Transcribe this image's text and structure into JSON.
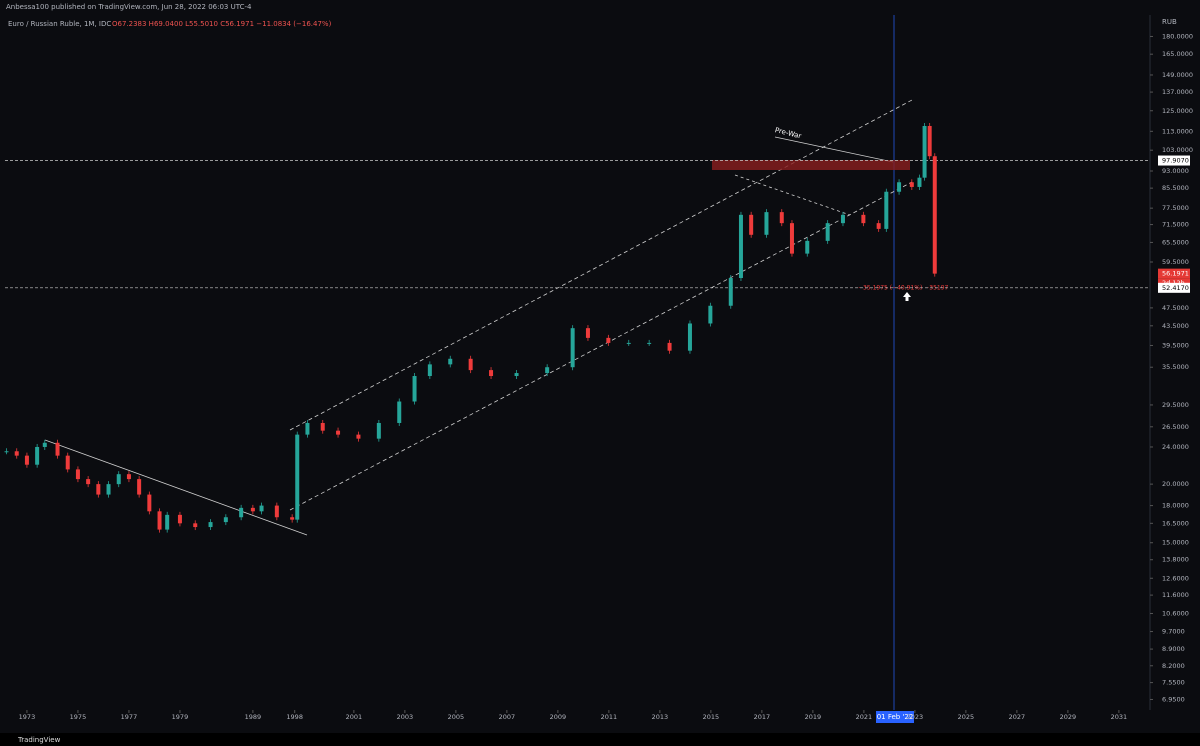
{
  "chart_data": {
    "type": "candlestick",
    "header": "Anbessa100 published on TradingView.com, Jun 28, 2022 06:03 UTC-4",
    "symbol": "Euro / Russian Ruble, 1M, IDC",
    "ohlc": "O67.2383 H69.0400 L55.5010 C56.1971 −11.0834 (−16.47%)",
    "currency": "RUB",
    "annotation": "Pre-War",
    "measure": "−35.1975 (−40.91%) −35197",
    "countdown": "2d 12h",
    "current_date": "01 Feb '22",
    "brand": "TradingView",
    "log_scale": true,
    "up_color": "#26a69a",
    "down_color": "#ef3b3b",
    "x": [
      -0.4,
      -0.2,
      0,
      0.2,
      0.35,
      0.6,
      0.8,
      1.0,
      1.2,
      1.4,
      1.6,
      1.8,
      2.0,
      2.2,
      2.4,
      2.6,
      2.75,
      3.0,
      3.3,
      3.6,
      3.9,
      4.2,
      4.43,
      4.6,
      4.9,
      5.2,
      5.3,
      5.5,
      5.8,
      6.1,
      6.5,
      6.9,
      7.3,
      7.6,
      7.9,
      8.3,
      8.7,
      9.1,
      9.6,
      10.2,
      10.7,
      11.0,
      11.4,
      11.8,
      12.2,
      12.6,
      13.0,
      13.4,
      13.8,
      14.0,
      14.2,
      14.5,
      14.8,
      15.0,
      15.3,
      15.7,
      16.0,
      16.4,
      16.7,
      16.85,
      17.1,
      17.35,
      17.5,
      17.6,
      17.7,
      17.8
    ],
    "values": [
      23.5,
      23,
      22,
      24,
      24.5,
      23,
      21.5,
      20.5,
      20,
      19,
      20,
      21,
      20.5,
      19,
      17.5,
      16,
      17.2,
      16.5,
      16.2,
      16.6,
      17,
      17.8,
      17.5,
      18,
      17,
      16.8,
      25.5,
      27,
      26,
      25.5,
      25,
      27,
      30,
      34,
      36,
      37,
      35,
      34,
      34.5,
      35.5,
      43,
      41,
      40,
      40,
      40,
      38.5,
      44,
      48,
      55,
      75,
      68,
      76,
      72,
      62,
      66,
      72,
      75,
      72,
      70,
      84,
      88,
      86,
      90,
      116,
      100,
      56.2
    ],
    "xlim": [
      -0.43,
      22.02
    ],
    "xticks": [
      {
        "value": 0,
        "label": "1973"
      },
      {
        "value": 1,
        "label": "1975"
      },
      {
        "value": 2,
        "label": "1977"
      },
      {
        "value": 3,
        "label": "1979"
      },
      {
        "value": 4.43,
        "label": "1989"
      },
      {
        "value": 5.25,
        "label": "1998"
      },
      {
        "value": 6.41,
        "label": "2001"
      },
      {
        "value": 7.41,
        "label": "2003"
      },
      {
        "value": 8.41,
        "label": "2005"
      },
      {
        "value": 9.41,
        "label": "2007"
      },
      {
        "value": 10.41,
        "label": "2009"
      },
      {
        "value": 11.41,
        "label": "2011"
      },
      {
        "value": 12.41,
        "label": "2013"
      },
      {
        "value": 13.41,
        "label": "2015"
      },
      {
        "value": 14.41,
        "label": "2017"
      },
      {
        "value": 15.41,
        "label": "2019"
      },
      {
        "value": 16.41,
        "label": "2021"
      },
      {
        "value": 17.41,
        "label": "2023"
      },
      {
        "value": 18.41,
        "label": "2025"
      },
      {
        "value": 19.41,
        "label": "2027"
      },
      {
        "value": 20.41,
        "label": "2029"
      },
      {
        "value": 21.41,
        "label": "2031"
      }
    ],
    "ylim": [
      6.6,
      200
    ],
    "yticks": [
      {
        "value": 180,
        "label": "180.0000"
      },
      {
        "value": 165,
        "label": "165.0000"
      },
      {
        "value": 149,
        "label": "149.0000"
      },
      {
        "value": 137,
        "label": "137.0000"
      },
      {
        "value": 125,
        "label": "125.0000"
      },
      {
        "value": 113,
        "label": "113.0000"
      },
      {
        "value": 103,
        "label": "103.0000"
      },
      {
        "value": 93,
        "label": "93.0000"
      },
      {
        "value": 85.5,
        "label": "85.5000"
      },
      {
        "value": 77.5,
        "label": "77.5000"
      },
      {
        "value": 71.5,
        "label": "71.5000"
      },
      {
        "value": 65.5,
        "label": "65.5000"
      },
      {
        "value": 59.5,
        "label": "59.5000"
      },
      {
        "value": 47.5,
        "label": "47.5000"
      },
      {
        "value": 43.5,
        "label": "43.5000"
      },
      {
        "value": 39.5,
        "label": "39.5000"
      },
      {
        "value": 35.5,
        "label": "35.5000"
      },
      {
        "value": 29.5,
        "label": "29.5000"
      },
      {
        "value": 26.5,
        "label": "26.5000"
      },
      {
        "value": 24,
        "label": "24.0000"
      },
      {
        "value": 20,
        "label": "20.0000"
      },
      {
        "value": 18,
        "label": "18.0000"
      },
      {
        "value": 16.5,
        "label": "16.5000"
      },
      {
        "value": 15,
        "label": "15.0000"
      },
      {
        "value": 13.8,
        "label": "13.8000"
      },
      {
        "value": 12.6,
        "label": "12.6000"
      },
      {
        "value": 11.6,
        "label": "11.6000"
      },
      {
        "value": 10.6,
        "label": "10.6000"
      },
      {
        "value": 9.7,
        "label": "9.7000"
      },
      {
        "value": 8.9,
        "label": "8.9000"
      },
      {
        "value": 8.2,
        "label": "8.2000"
      },
      {
        "value": 7.55,
        "label": "7.5500"
      },
      {
        "value": 6.95,
        "label": "6.9500"
      }
    ],
    "price_lines": [
      {
        "value": 97.907,
        "label": "97.9070"
      },
      {
        "value": 56.1971,
        "label": "56.1971"
      },
      {
        "value": 52.417,
        "label": "52.4170"
      }
    ]
  }
}
